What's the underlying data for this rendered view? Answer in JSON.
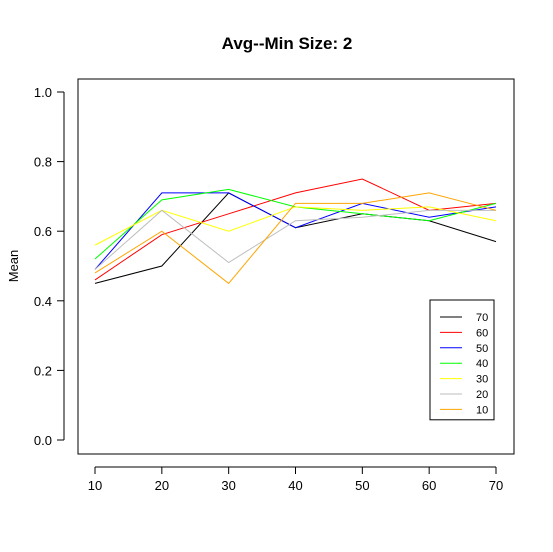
{
  "chart_data": {
    "type": "line",
    "title": "Avg--Min Size: 2",
    "xlabel": "",
    "ylabel": "Mean",
    "x": [
      10,
      20,
      30,
      40,
      50,
      60,
      70
    ],
    "xlim": [
      10,
      70
    ],
    "ylim": [
      0,
      1
    ],
    "x_ticks": [
      "10",
      "20",
      "30",
      "40",
      "50",
      "60",
      "70"
    ],
    "y_ticks": [
      "0.0",
      "0.2",
      "0.4",
      "0.6",
      "0.8",
      "1.0"
    ],
    "grid": false,
    "legend_position": "bottom-right",
    "series": [
      {
        "name": "70",
        "color": "#000000",
        "values": [
          0.45,
          0.5,
          0.71,
          0.61,
          0.65,
          0.63,
          0.57
        ]
      },
      {
        "name": "60",
        "color": "#ff0000",
        "values": [
          0.46,
          0.59,
          0.65,
          0.71,
          0.75,
          0.66,
          0.68
        ]
      },
      {
        "name": "50",
        "color": "#0000ff",
        "values": [
          0.49,
          0.71,
          0.71,
          0.61,
          0.68,
          0.64,
          0.67
        ]
      },
      {
        "name": "40",
        "color": "#00ff00",
        "values": [
          0.52,
          0.69,
          0.72,
          0.67,
          0.65,
          0.63,
          0.68
        ]
      },
      {
        "name": "30",
        "color": "#ffff00",
        "values": [
          0.56,
          0.66,
          0.6,
          0.67,
          0.66,
          0.67,
          0.63
        ]
      },
      {
        "name": "20",
        "color": "#bebebe",
        "values": [
          0.49,
          0.66,
          0.51,
          0.63,
          0.64,
          0.66,
          0.66
        ]
      },
      {
        "name": "10",
        "color": "#ffa500",
        "values": [
          0.48,
          0.6,
          0.45,
          0.68,
          0.68,
          0.71,
          0.66
        ]
      }
    ]
  }
}
